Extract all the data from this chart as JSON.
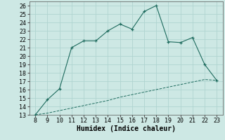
{
  "title": "",
  "xlabel": "Humidex (Indice chaleur)",
  "x_main": [
    8,
    9,
    10,
    11,
    12,
    13,
    14,
    15,
    16,
    17,
    18,
    19,
    20,
    21,
    22,
    23
  ],
  "y_main": [
    13,
    14.8,
    16.1,
    21.0,
    21.8,
    21.8,
    23.0,
    23.8,
    23.2,
    25.3,
    26.0,
    21.7,
    21.6,
    22.2,
    19.0,
    17.1
  ],
  "x_ref": [
    8,
    9,
    10,
    11,
    12,
    13,
    14,
    15,
    16,
    17,
    18,
    19,
    20,
    21,
    22,
    23
  ],
  "y_ref": [
    13.0,
    13.2,
    13.5,
    13.8,
    14.1,
    14.4,
    14.7,
    15.1,
    15.4,
    15.7,
    16.0,
    16.3,
    16.6,
    16.9,
    17.2,
    17.1
  ],
  "line_color": "#1e6b5e",
  "ref_color": "#1e6b5e",
  "bg_color": "#cde8e4",
  "grid_color": "#b0d4d0",
  "xlim": [
    7.5,
    23.5
  ],
  "ylim": [
    13,
    26.5
  ],
  "yticks": [
    13,
    14,
    15,
    16,
    17,
    18,
    19,
    20,
    21,
    22,
    23,
    24,
    25,
    26
  ],
  "xticks": [
    8,
    9,
    10,
    11,
    12,
    13,
    14,
    15,
    16,
    17,
    18,
    19,
    20,
    21,
    22,
    23
  ],
  "xlabel_fontsize": 7,
  "tick_fontsize": 6
}
